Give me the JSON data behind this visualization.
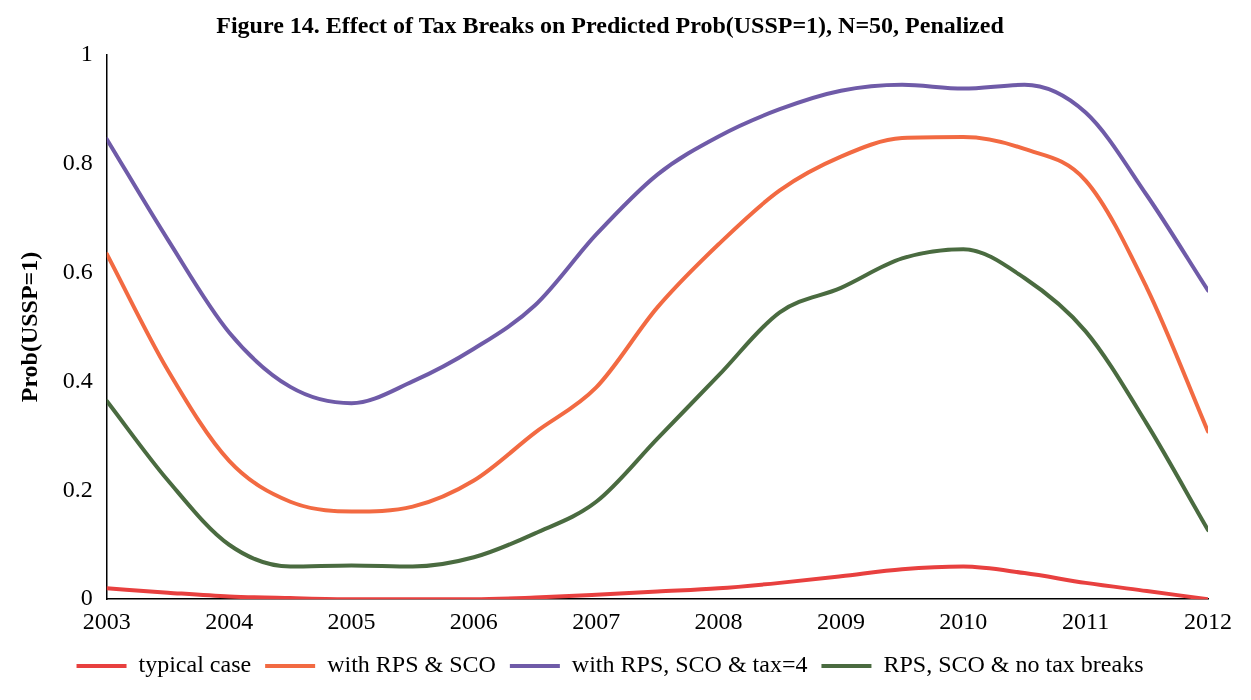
{
  "chart_data": {
    "type": "line",
    "title": "Figure 14. Effect of Tax Breaks on Predicted Prob(USSP=1), N=50, Penalized",
    "ylabel": "Prob(USSP=1)",
    "x": [
      2003,
      2003.5,
      2004,
      2004.5,
      2005,
      2005.5,
      2006,
      2006.5,
      2007,
      2007.5,
      2008,
      2008.5,
      2009,
      2009.5,
      2010,
      2010.5,
      2011,
      2011.5,
      2012
    ],
    "series": [
      {
        "name": "typical case",
        "color": "#e8403f",
        "values": [
          0.02,
          0.012,
          0.005,
          0.002,
          0,
          0,
          0,
          0.003,
          0.008,
          0.014,
          0.02,
          0.03,
          0.042,
          0.055,
          0.06,
          0.048,
          0.03,
          0.015,
          0
        ]
      },
      {
        "name": "with RPS & SCO",
        "color": "#f26a42",
        "values": [
          0.634,
          0.42,
          0.254,
          0.179,
          0.161,
          0.17,
          0.218,
          0.306,
          0.389,
          0.536,
          0.652,
          0.751,
          0.813,
          0.847,
          0.849,
          0.827,
          0.769,
          0.572,
          0.308
        ]
      },
      {
        "name": "with RPS, SCO & tax=4",
        "color": "#6f5ba8",
        "values": [
          0.845,
          0.66,
          0.49,
          0.39,
          0.36,
          0.4,
          0.46,
          0.54,
          0.67,
          0.78,
          0.85,
          0.9,
          0.934,
          0.945,
          0.938,
          0.945,
          0.894,
          0.742,
          0.567
        ]
      },
      {
        "name": "RPS, SCO & no tax breaks",
        "color": "#4a6b40",
        "values": [
          0.364,
          0.218,
          0.1,
          0.06,
          0.062,
          0.06,
          0.077,
          0.121,
          0.179,
          0.295,
          0.411,
          0.527,
          0.572,
          0.626,
          0.643,
          0.59,
          0.492,
          0.322,
          0.127
        ]
      }
    ],
    "xlim": [
      2003,
      2012
    ],
    "xticks": [
      2003,
      2004,
      2005,
      2006,
      2007,
      2008,
      2009,
      2010,
      2011,
      2012
    ],
    "ylim": [
      0,
      1
    ],
    "yticks": [
      0,
      0.2,
      0.4,
      0.6,
      0.8,
      1
    ],
    "grid": false,
    "legend": "bottom",
    "marker": "none",
    "line_style": "solid"
  }
}
